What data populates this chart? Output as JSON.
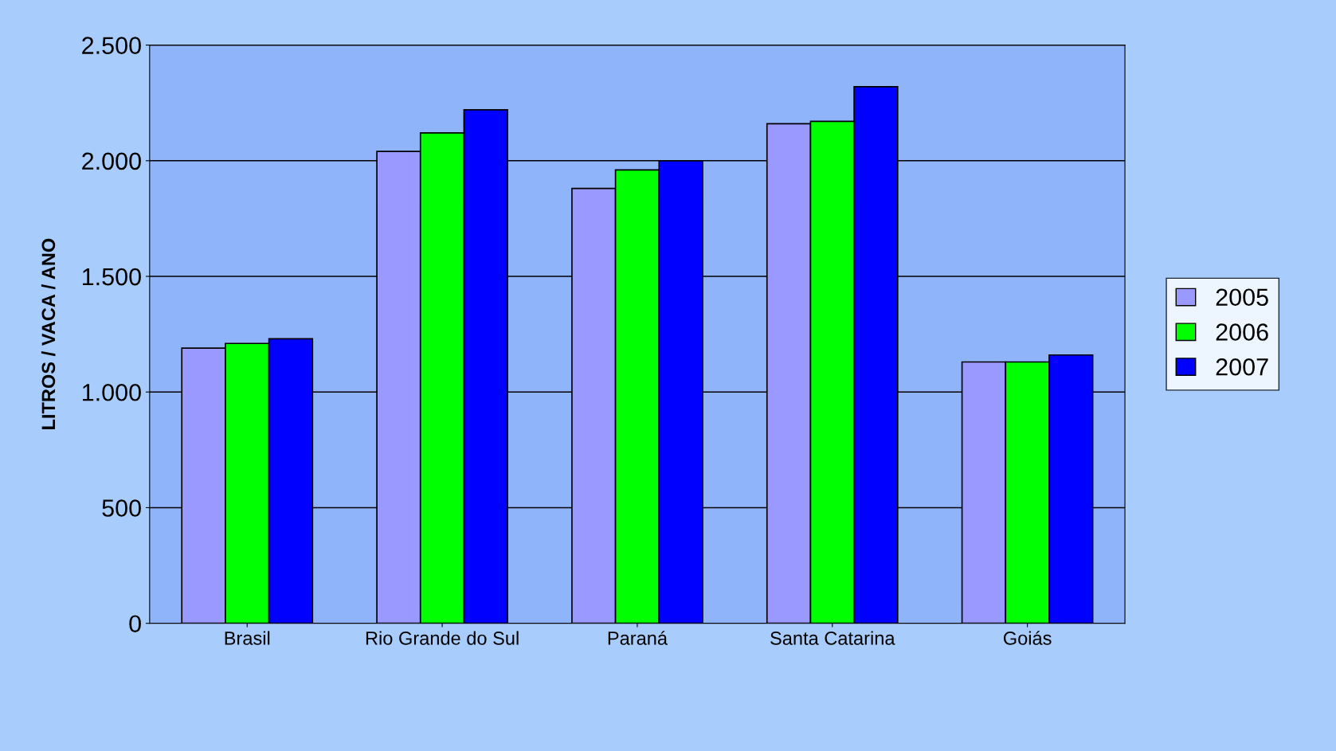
{
  "chart_data": {
    "type": "bar",
    "ylabel": "LITROS / VACA / ANO",
    "categories": [
      "Brasil",
      "Rio Grande do Sul",
      "Paraná",
      "Santa Catarina",
      "Goiás"
    ],
    "series": [
      {
        "name": "2005",
        "color": "#9999ff",
        "values": [
          1190,
          2040,
          1880,
          2160,
          1130
        ]
      },
      {
        "name": "2006",
        "color": "#00ff00",
        "values": [
          1210,
          2120,
          1960,
          2170,
          1130
        ]
      },
      {
        "name": "2007",
        "color": "#0000ff",
        "values": [
          1230,
          2220,
          2000,
          2320,
          1160
        ]
      }
    ],
    "ylim": [
      0,
      2500
    ],
    "yticks": [
      0,
      500,
      {
        "value": 1000,
        "label": "1.000"
      },
      {
        "value": 1500,
        "label": "1.500"
      },
      {
        "value": 2000,
        "label": "2.000"
      },
      {
        "value": 2500,
        "label": "2.500"
      }
    ],
    "grid": "y",
    "legend": "right"
  }
}
